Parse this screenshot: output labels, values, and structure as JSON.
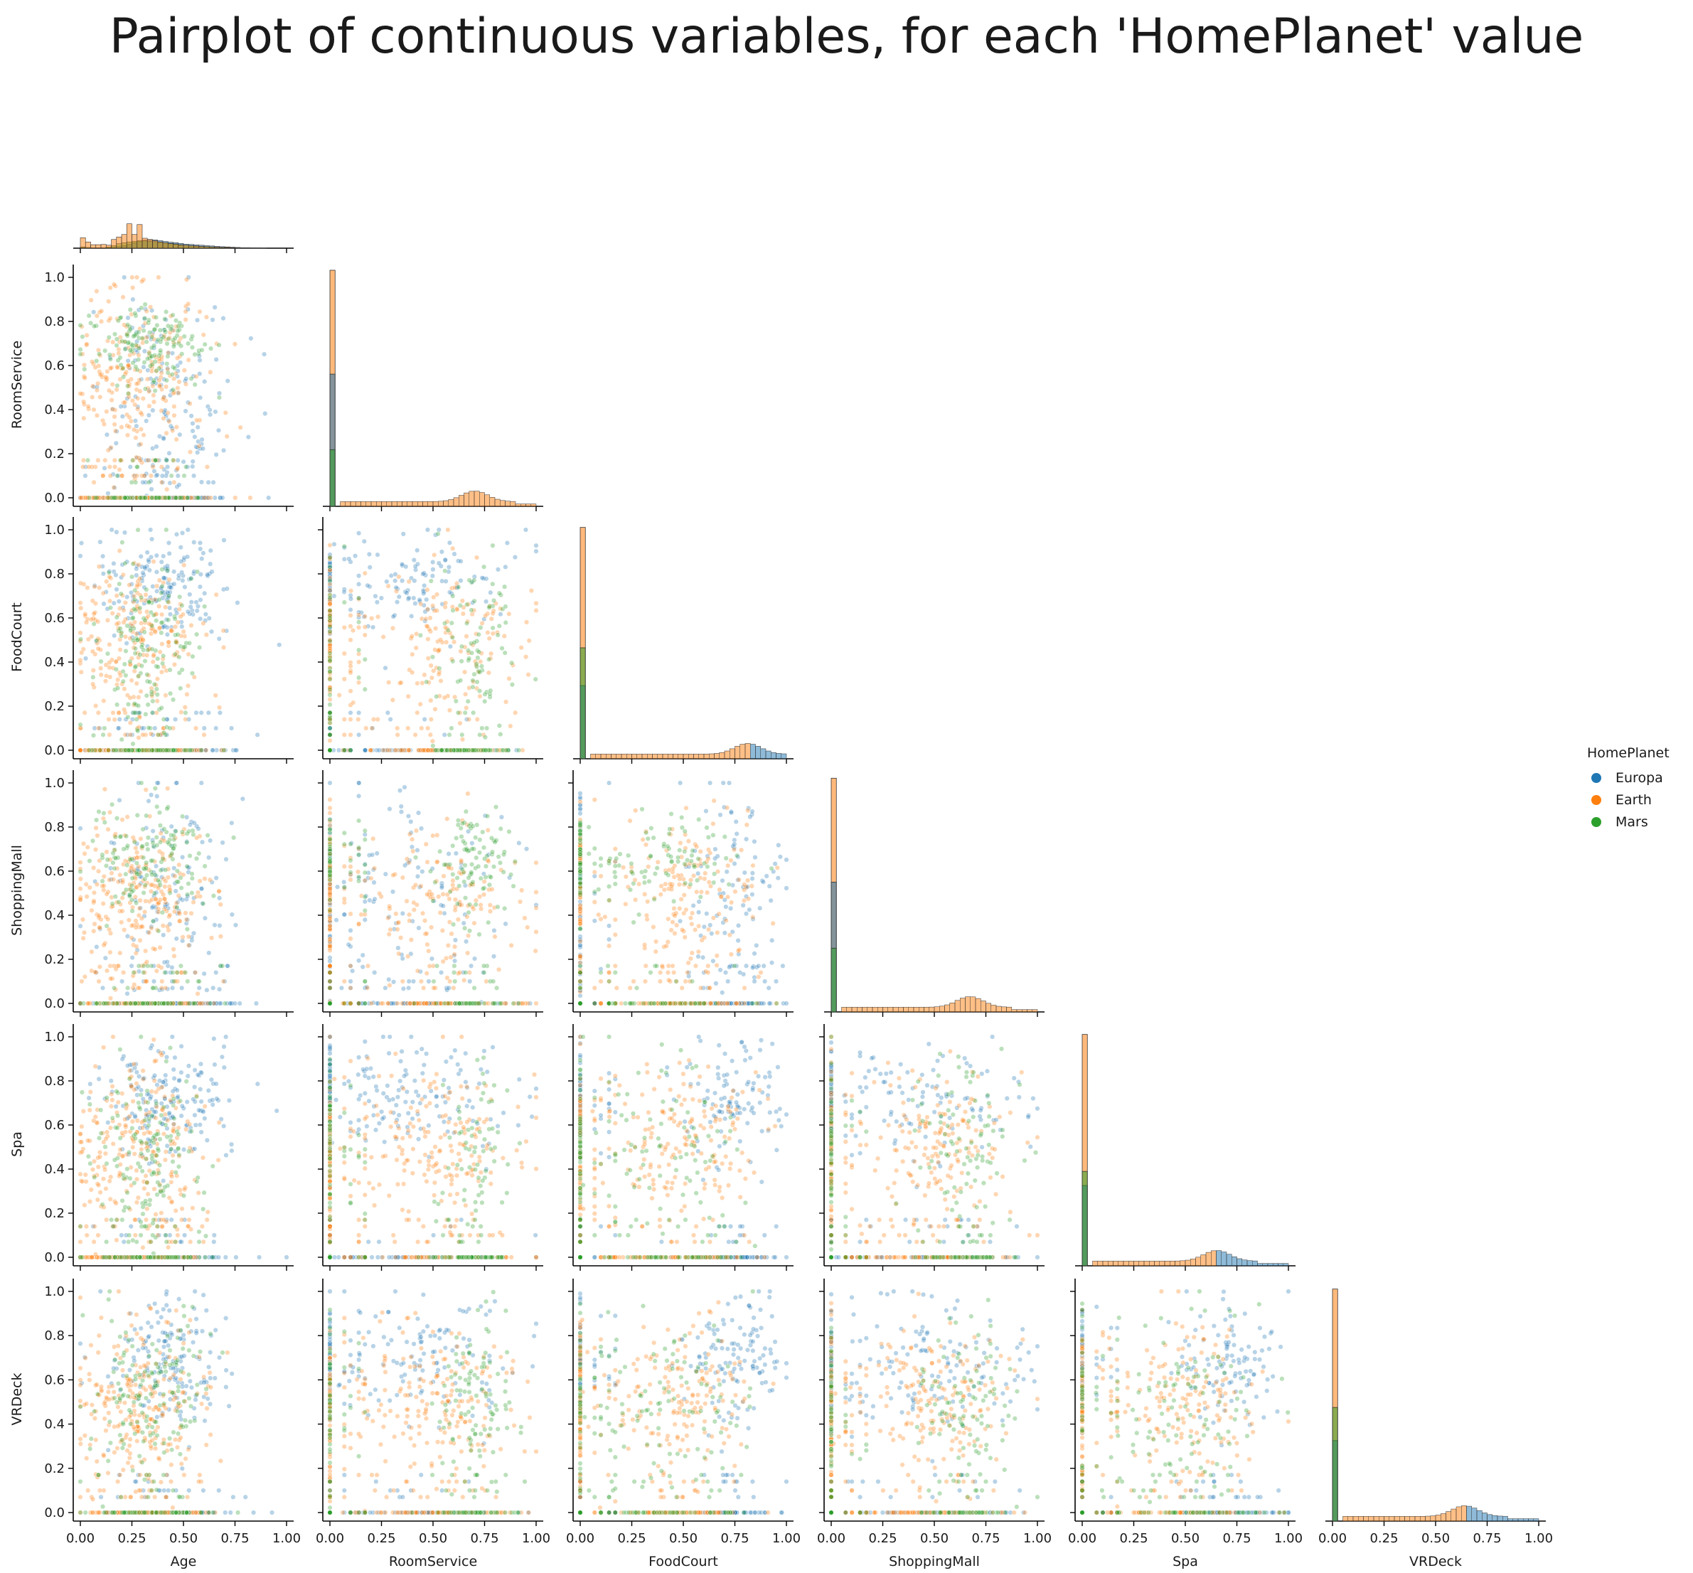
{
  "chart_data": {
    "type": "scatter",
    "title": "Pairplot of continuous variables, for each 'HomePlanet' value",
    "variables": [
      "Age",
      "RoomService",
      "FoodCourt",
      "ShoppingMall",
      "Spa",
      "VRDeck"
    ],
    "axis_range": [
      0,
      1
    ],
    "xticks": [
      "0.00",
      "0.25",
      "0.50",
      "0.75",
      "1.00"
    ],
    "yticks": [
      "0.0",
      "0.2",
      "0.4",
      "0.6",
      "0.8",
      "1.0"
    ],
    "legend": {
      "title": "HomePlanet",
      "placement": "right",
      "entries": [
        {
          "name": "Europa",
          "color": "#1f77b4"
        },
        {
          "name": "Earth",
          "color": "#ff7f0e"
        },
        {
          "name": "Mars",
          "color": "#2ca02c"
        }
      ]
    },
    "layout": "lower-triangle, histograms on diagonal, scatter below diagonal",
    "diagonal_histograms": {
      "Age": {
        "bins": [
          0,
          0.025,
          0.05,
          0.075,
          0.1,
          0.125,
          0.15,
          0.175,
          0.2,
          0.225,
          0.25,
          0.275,
          0.3,
          0.325,
          0.35,
          0.375,
          0.4,
          0.425,
          0.45,
          0.475,
          0.5,
          0.525,
          0.55,
          0.575,
          0.6,
          0.625,
          0.65,
          0.675,
          0.7,
          0.725,
          0.75,
          0.775,
          0.8,
          0.825,
          0.85,
          0.875,
          0.9,
          0.925,
          0.95,
          0.975
        ],
        "Earth": [
          0.42,
          0.25,
          0.14,
          0.14,
          0.15,
          0.12,
          0.35,
          0.45,
          0.55,
          0.98,
          0.55,
          0.95,
          0.4,
          0.35,
          0.3,
          0.25,
          0.22,
          0.18,
          0.16,
          0.13,
          0.12,
          0.1,
          0.09,
          0.07,
          0.06,
          0.05,
          0.04,
          0.03,
          0.03,
          0.02,
          0.02,
          0.01,
          0.01,
          0.01,
          0.01,
          0,
          0,
          0,
          0,
          0
        ],
        "Europa": [
          0.03,
          0.02,
          0.01,
          0.01,
          0.01,
          0.02,
          0.04,
          0.06,
          0.1,
          0.15,
          0.22,
          0.28,
          0.32,
          0.34,
          0.33,
          0.3,
          0.27,
          0.24,
          0.22,
          0.19,
          0.16,
          0.15,
          0.13,
          0.12,
          0.1,
          0.09,
          0.07,
          0.06,
          0.05,
          0.04,
          0.03,
          0.02,
          0.02,
          0.01,
          0.01,
          0.01,
          0,
          0,
          0,
          0
        ],
        "Mars": [
          0.05,
          0.03,
          0.02,
          0.02,
          0.02,
          0.05,
          0.1,
          0.18,
          0.22,
          0.25,
          0.28,
          0.3,
          0.3,
          0.28,
          0.26,
          0.24,
          0.22,
          0.19,
          0.17,
          0.14,
          0.12,
          0.1,
          0.08,
          0.07,
          0.06,
          0.05,
          0.04,
          0.03,
          0.03,
          0.02,
          0.01,
          0.01,
          0.01,
          0,
          0,
          0,
          0,
          0,
          0,
          0
        ]
      },
      "RoomService": {
        "Earth_zero": 1.0,
        "Europa_zero": 0.56,
        "Mars_zero": 0.24,
        "spread_peak": 0.69,
        "spread_color": "Mars/Earth"
      },
      "FoodCourt": {
        "Earth_zero": 0.98,
        "Mars_zero": 0.47,
        "Europa_zero": 0.31,
        "spread_peak": 0.8,
        "spread_color": "Europa"
      },
      "ShoppingMall": {
        "Earth_zero": 0.99,
        "Europa_zero": 0.55,
        "Mars_zero": 0.27,
        "spread_peak": 0.66,
        "spread_color": "Earth/Mars"
      },
      "Spa": {
        "Earth_zero": 0.98,
        "Mars_zero": 0.4,
        "Europa_zero": 0.34,
        "spread_peak": 0.64,
        "spread_color": "Europa"
      },
      "VRDeck": {
        "Earth_zero": 0.98,
        "Mars_zero": 0.48,
        "Europa_zero": 0.34,
        "spread_peak": 0.63,
        "spread_color": "Europa"
      }
    }
  }
}
